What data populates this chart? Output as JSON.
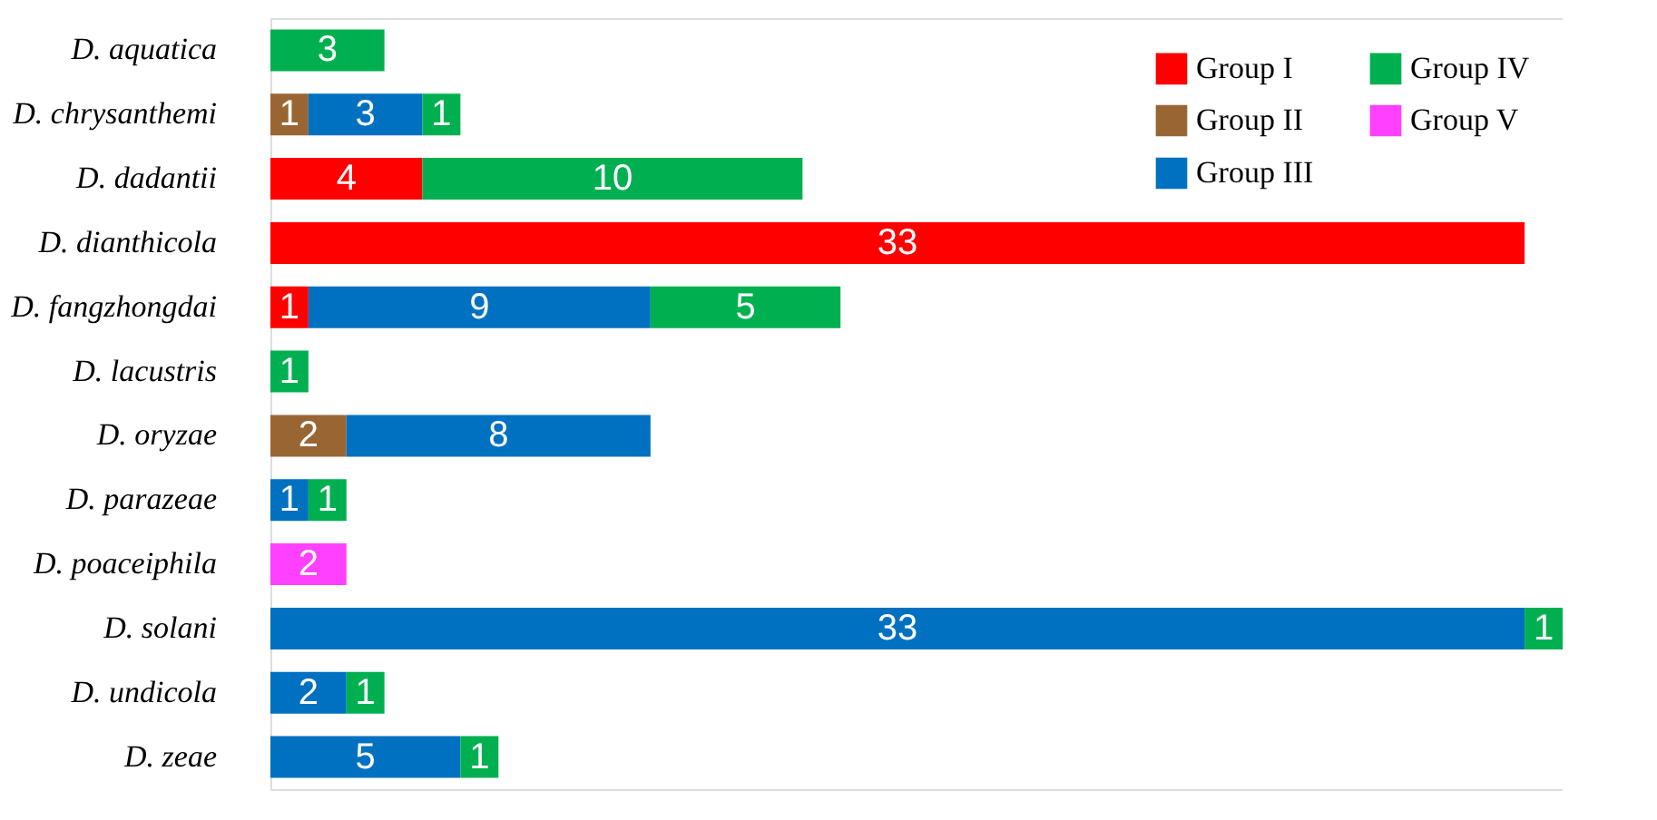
{
  "chart_data": {
    "type": "bar",
    "orientation": "horizontal",
    "stacked": true,
    "data_labels": true,
    "legend": "top right",
    "grid": false,
    "categories": [
      "D. aquatica",
      "D. chrysanthemi",
      "D. dadantii",
      "D. dianthicola",
      "D. fangzhongdai",
      "D. lacustris",
      "D. oryzae",
      "D. parazeae",
      "D. poaceiphila",
      "D. solani",
      "D. undicola",
      "D. zeae"
    ],
    "series": [
      {
        "name": "Group I",
        "color": "#ff0000",
        "values": [
          null,
          null,
          4,
          33,
          1,
          null,
          null,
          null,
          null,
          null,
          null,
          null
        ]
      },
      {
        "name": "Group II",
        "color": "#996633",
        "values": [
          null,
          1,
          null,
          null,
          null,
          null,
          2,
          null,
          null,
          null,
          null,
          null
        ]
      },
      {
        "name": "Group III",
        "color": "#0070c0",
        "values": [
          null,
          3,
          null,
          null,
          9,
          null,
          8,
          1,
          null,
          33,
          2,
          5
        ]
      },
      {
        "name": "Group IV",
        "color": "#00b050",
        "values": [
          3,
          1,
          10,
          null,
          5,
          1,
          null,
          1,
          null,
          1,
          1,
          1
        ]
      },
      {
        "name": "Group V",
        "color": "#ff40ff",
        "values": [
          null,
          null,
          null,
          null,
          null,
          null,
          null,
          null,
          2,
          null,
          null,
          null
        ]
      }
    ]
  }
}
